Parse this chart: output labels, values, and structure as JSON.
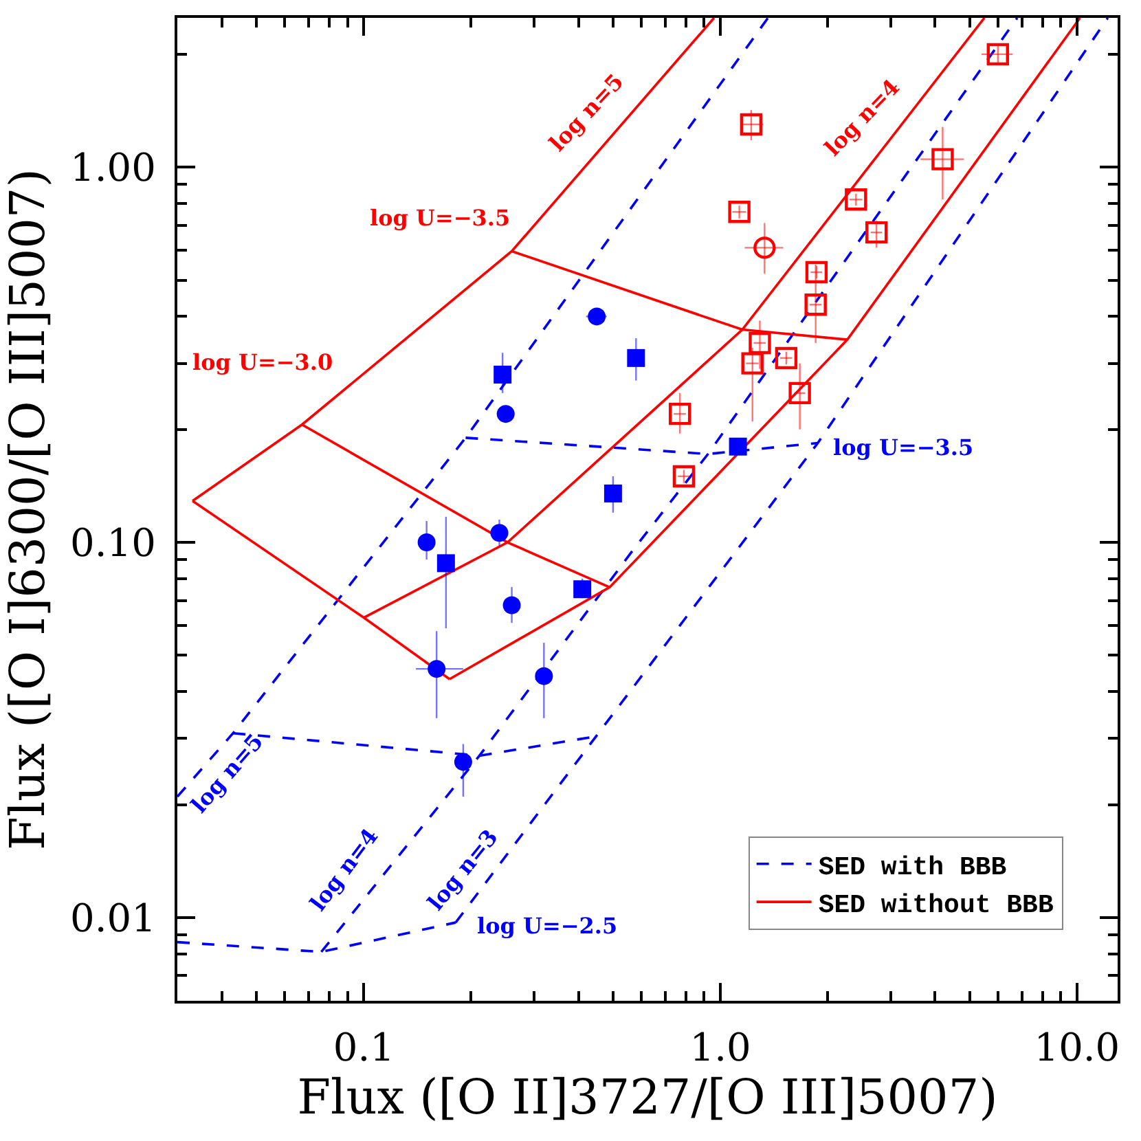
{
  "chart_data": {
    "type": "line",
    "xlabel": "Flux ([O II]3727/[O III]5007)",
    "ylabel": "Flux ([O I]6300/[O III]5007)",
    "log": "xy",
    "grid": false,
    "legend": "bottom right",
    "xlim": [
      0.03,
      13
    ],
    "ylim": [
      0.006,
      2.5
    ],
    "xticks": [
      {
        "value": 0.04,
        "label": null
      },
      {
        "value": 0.05,
        "label": null
      },
      {
        "value": 0.06,
        "label": null
      },
      {
        "value": 0.07,
        "label": null
      },
      {
        "value": 0.08,
        "label": null
      },
      {
        "value": 0.09,
        "label": null
      },
      {
        "value": 0.1,
        "label": "0.1"
      },
      {
        "value": 0.2,
        "label": null
      },
      {
        "value": 0.3,
        "label": null
      },
      {
        "value": 0.4,
        "label": null
      },
      {
        "value": 0.5,
        "label": null
      },
      {
        "value": 0.6,
        "label": null
      },
      {
        "value": 0.7,
        "label": null
      },
      {
        "value": 0.8,
        "label": null
      },
      {
        "value": 0.9,
        "label": null
      },
      {
        "value": 1,
        "label": "1.0"
      },
      {
        "value": 2,
        "label": null
      },
      {
        "value": 3,
        "label": null
      },
      {
        "value": 4,
        "label": null
      },
      {
        "value": 5,
        "label": null
      },
      {
        "value": 6,
        "label": null
      },
      {
        "value": 7,
        "label": null
      },
      {
        "value": 8,
        "label": null
      },
      {
        "value": 9,
        "label": null
      },
      {
        "value": 10,
        "label": "10.0"
      }
    ],
    "yticks": [
      {
        "value": 0.007,
        "label": null
      },
      {
        "value": 0.008,
        "label": null
      },
      {
        "value": 0.009,
        "label": null
      },
      {
        "value": 0.01,
        "label": "0.01"
      },
      {
        "value": 0.02,
        "label": null
      },
      {
        "value": 0.03,
        "label": null
      },
      {
        "value": 0.04,
        "label": null
      },
      {
        "value": 0.05,
        "label": null
      },
      {
        "value": 0.06,
        "label": null
      },
      {
        "value": 0.07,
        "label": null
      },
      {
        "value": 0.08,
        "label": null
      },
      {
        "value": 0.09,
        "label": null
      },
      {
        "value": 0.1,
        "label": "0.10"
      },
      {
        "value": 0.2,
        "label": null
      },
      {
        "value": 0.3,
        "label": null
      },
      {
        "value": 0.4,
        "label": null
      },
      {
        "value": 0.5,
        "label": null
      },
      {
        "value": 0.6,
        "label": null
      },
      {
        "value": 0.7,
        "label": null
      },
      {
        "value": 0.8,
        "label": null
      },
      {
        "value": 0.9,
        "label": null
      },
      {
        "value": 1,
        "label": "1.00"
      },
      {
        "value": 2,
        "label": null
      }
    ],
    "series": [
      {
        "name": "SED with BBB",
        "color": "#0000ff",
        "line_style": "dashed",
        "x": [
          0.03,
          0.043,
          0.193,
          1.36
        ],
        "values": [
          0.021,
          0.031,
          0.19,
          2.5
        ]
      },
      {
        "color": "#0000ff",
        "line_style": "dashed",
        "x": [
          0.076,
          0.211,
          0.567,
          0.923,
          6.8
        ],
        "values": [
          0.0081,
          0.027,
          0.095,
          0.172,
          2.5
        ]
      },
      {
        "color": "#0000ff",
        "line_style": "dashed",
        "x": [
          0.181,
          0.448,
          1.876,
          12.2
        ],
        "values": [
          0.0097,
          0.0304,
          0.184,
          2.5
        ]
      },
      {
        "color": "#0000ff",
        "line_style": "dashed",
        "x": [
          0.03,
          0.076,
          0.181
        ],
        "values": [
          0.0086,
          0.0081,
          0.0097
        ]
      },
      {
        "color": "#0000ff",
        "line_style": "dashed",
        "x": [
          0.043,
          0.211,
          0.448
        ],
        "values": [
          0.031,
          0.027,
          0.0304
        ]
      },
      {
        "color": "#0000ff",
        "line_style": "dashed",
        "x": [
          0.193,
          0.923,
          1.876
        ],
        "values": [
          0.19,
          0.172,
          0.184
        ]
      },
      {
        "name": "SED without BBB",
        "color": "#ff0000",
        "line_style": "solid",
        "x": [
          0.0331,
          0.0671,
          0.26,
          0.96
        ],
        "values": [
          0.129,
          0.206,
          0.597,
          2.5
        ]
      },
      {
        "color": "#ff0000",
        "line_style": "solid",
        "x": [
          0.1,
          0.253,
          1.152,
          5.5
        ],
        "values": [
          0.063,
          0.1,
          0.369,
          2.5
        ]
      },
      {
        "color": "#ff0000",
        "line_style": "solid",
        "x": [
          0.174,
          0.489,
          2.27,
          10.2
        ],
        "values": [
          0.0432,
          0.0759,
          0.347,
          2.5
        ]
      },
      {
        "color": "#ff0000",
        "line_style": "solid",
        "x": [
          0.0331,
          0.1,
          0.174
        ],
        "values": [
          0.129,
          0.063,
          0.0432
        ]
      },
      {
        "color": "#ff0000",
        "line_style": "solid",
        "x": [
          0.0671,
          0.253,
          0.489
        ],
        "values": [
          0.206,
          0.1,
          0.0759
        ]
      },
      {
        "color": "#ff0000",
        "line_style": "solid",
        "x": [
          0.26,
          1.152,
          2.27
        ],
        "values": [
          0.597,
          0.369,
          0.347
        ]
      },
      {
        "type": "scatter",
        "marker": "circle",
        "color": "#0000ff",
        "x": [
          0.45,
          0.25,
          0.15,
          0.24,
          0.26,
          0.16,
          0.32,
          0.19
        ],
        "values": [
          0.4,
          0.22,
          0.1,
          0.106,
          0.068,
          0.046,
          0.044,
          0.026
        ],
        "errors": [
          null,
          null,
          [
            0.09,
            0.114
          ],
          [
            0.098,
            0.115
          ],
          [
            0.061,
            0.076
          ],
          [
            0.034,
            0.058
          ],
          [
            0.034,
            0.054
          ],
          [
            0.021,
            0.029
          ]
        ],
        "xerrors": [
          [
            0.42,
            0.48
          ],
          null,
          null,
          null,
          null,
          [
            0.14,
            0.19
          ],
          null,
          null
        ]
      },
      {
        "type": "scatter",
        "marker": "square",
        "color": "#0000ff",
        "x": [
          0.245,
          0.58,
          0.5,
          0.17,
          0.41,
          1.12
        ],
        "values": [
          0.28,
          0.31,
          0.135,
          0.088,
          0.075,
          0.18
        ],
        "errors": [
          [
            0.25,
            0.32
          ],
          [
            0.27,
            0.35
          ],
          [
            0.12,
            0.15
          ],
          [
            0.059,
            0.117
          ],
          [
            0.071,
            0.08
          ],
          null
        ]
      },
      {
        "type": "scatter",
        "marker": "square-open",
        "color": "#ff0000",
        "x": [
          6.0,
          1.22,
          4.2,
          2.4,
          1.13,
          2.74,
          1.86,
          1.85,
          1.29,
          1.23,
          1.53,
          1.67,
          0.77,
          0.79
        ],
        "values": [
          2.0,
          1.3,
          1.05,
          0.82,
          0.76,
          0.67,
          0.525,
          0.43,
          0.34,
          0.3,
          0.31,
          0.25,
          0.22,
          0.15
        ],
        "errors": [
          [
            1.88,
            2.13
          ],
          [
            1.18,
            1.42
          ],
          [
            0.82,
            1.28
          ],
          0.03,
          0.03,
          [
            0.61,
            0.72
          ],
          0.02,
          [
            0.34,
            0.55
          ],
          [
            0.29,
            0.39
          ],
          [
            0.21,
            0.33
          ],
          0.012,
          [
            0.2,
            0.3
          ],
          [
            0.195,
            0.25
          ],
          0.006
        ],
        "xerrors": [
          [
            5.4,
            6.6
          ],
          [
            1.14,
            1.32
          ],
          [
            3.64,
            4.82
          ],
          0.1,
          0.05,
          0.1,
          0.07,
          0.07,
          0.05,
          0.05,
          0.06,
          0.06,
          0.03,
          0.03
        ]
      },
      {
        "type": "scatter",
        "marker": "circle-open",
        "color": "#ff0000",
        "x": [
          1.33
        ],
        "values": [
          0.61
        ],
        "errors": [
          [
            0.52,
            0.71
          ]
        ],
        "xerrors": [
          [
            1.17,
            1.5
          ]
        ]
      }
    ],
    "annotations": [
      "log n=5",
      "log n=4",
      "log U=−3.5",
      "log U=−3.0",
      "log U=−3.5",
      "log n=5",
      "log n=4",
      "log n=3",
      "log U=−2.5"
    ]
  }
}
